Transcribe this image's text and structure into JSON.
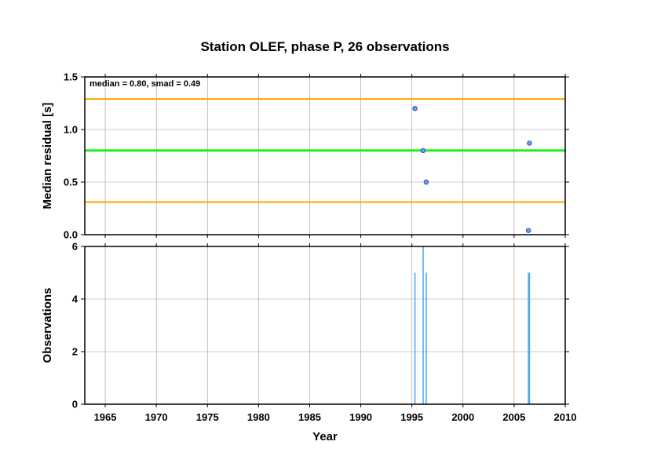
{
  "chart_data": {
    "title": "Station OLEF, phase P, 26 observations",
    "xlabel": "Year",
    "xlim": [
      1963,
      2010
    ],
    "xticks": [
      1965,
      1970,
      1975,
      1980,
      1985,
      1990,
      1995,
      2000,
      2005,
      2010
    ],
    "grid": true,
    "colors": {
      "median_line": "#22ee22",
      "smad_lines": "#ffa500",
      "points": "#6699ff",
      "bars": "#55aaee"
    },
    "panels": [
      {
        "type": "scatter",
        "ylabel": "Median residual [s]",
        "ylim": [
          0.0,
          1.5
        ],
        "yticks": [
          "0.0",
          "0.5",
          "1.0",
          "1.5"
        ],
        "annotation": "median = 0.80, smad = 0.49",
        "median": 0.8,
        "upper": 1.29,
        "lower": 0.31,
        "points": [
          {
            "x": 1995.3,
            "y": 1.2
          },
          {
            "x": 1996.1,
            "y": 0.8
          },
          {
            "x": 1996.4,
            "y": 0.5
          },
          {
            "x": 2006.5,
            "y": 0.87
          },
          {
            "x": 2006.4,
            "y": 0.04
          }
        ]
      },
      {
        "type": "bar",
        "ylabel": "Observations",
        "ylim": [
          0,
          6
        ],
        "yticks": [
          "0",
          "2",
          "4",
          "6"
        ],
        "bars": [
          {
            "x": 1995.3,
            "y": 5
          },
          {
            "x": 1996.1,
            "y": 6
          },
          {
            "x": 1996.4,
            "y": 5
          },
          {
            "x": 2006.4,
            "y": 5
          },
          {
            "x": 2006.5,
            "y": 5
          }
        ]
      }
    ]
  }
}
